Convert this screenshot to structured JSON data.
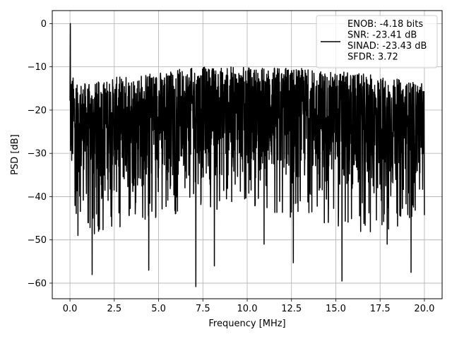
{
  "chart_data": {
    "type": "line",
    "xlabel": "Frequency [MHz]",
    "ylabel": "PSD [dB]",
    "xlim": [
      -1.0,
      21.0
    ],
    "ylim": [
      -63.6,
      3.0
    ],
    "xticks": [
      0.0,
      2.5,
      5.0,
      7.5,
      10.0,
      12.5,
      15.0,
      17.5,
      20.0
    ],
    "xtick_labels": [
      "0.0",
      "2.5",
      "5.0",
      "7.5",
      "10.0",
      "12.5",
      "15.0",
      "17.5",
      "20.0"
    ],
    "yticks": [
      0,
      -10,
      -20,
      -30,
      -40,
      -50,
      -60
    ],
    "ytick_labels": [
      "0",
      "−10",
      "−20",
      "−30",
      "−40",
      "−50",
      "−60"
    ],
    "grid": true,
    "legend_position": "top-right",
    "series": [
      {
        "name": "ENOB: -4.18 bits\nSNR: -23.41 dB\nSINAD: -23.43 dB\nSFDR: 3.72",
        "color": "#000000",
        "x_range": [
          0.0,
          20.0
        ],
        "num_points": 2048,
        "peak": {
          "x": 0.02,
          "y": 0.0
        },
        "upper_envelope": [
          [
            0.1,
            -12
          ],
          [
            1.0,
            -14
          ],
          [
            3.0,
            -12
          ],
          [
            5.0,
            -11
          ],
          [
            7.5,
            -10
          ],
          [
            10.0,
            -10
          ],
          [
            12.5,
            -10
          ],
          [
            15.0,
            -11
          ],
          [
            17.5,
            -12
          ],
          [
            20.0,
            -14
          ]
        ],
        "lower_envelope": [
          [
            0.1,
            -40
          ],
          [
            1.0,
            -44
          ],
          [
            3.0,
            -42
          ],
          [
            5.0,
            -40
          ],
          [
            7.5,
            -38
          ],
          [
            10.0,
            -38
          ],
          [
            12.5,
            -40
          ],
          [
            15.0,
            -42
          ],
          [
            17.5,
            -44
          ],
          [
            20.0,
            -40
          ]
        ],
        "notable_minima": [
          [
            0.45,
            -49
          ],
          [
            1.25,
            -58
          ],
          [
            4.45,
            -57
          ],
          [
            7.1,
            -60.8
          ],
          [
            8.15,
            -56
          ],
          [
            10.95,
            -51
          ],
          [
            12.6,
            -55.3
          ],
          [
            15.35,
            -59.5
          ],
          [
            17.9,
            -51
          ],
          [
            19.25,
            -57.5
          ]
        ]
      }
    ]
  }
}
